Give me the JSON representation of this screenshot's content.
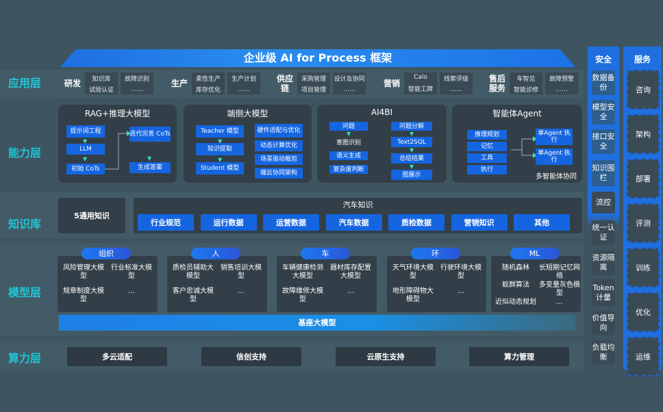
{
  "title": "企业级 AI for Process 框架",
  "layers": {
    "app": "应用层",
    "capability": "能力层",
    "knowledge": "知识库",
    "model": "模型层",
    "compute": "算力层"
  },
  "app_groups": [
    {
      "name": "研发",
      "cells": [
        [
          "知识库",
          "试验认证"
        ],
        [
          "故障识别",
          "……"
        ]
      ]
    },
    {
      "name": "生产",
      "cells": [
        [
          "柔性生产",
          "库存优化"
        ],
        [
          "生产计划",
          "……"
        ]
      ]
    },
    {
      "name": "供应链",
      "cells": [
        [
          "采购管理",
          "项目管理"
        ],
        [
          "设计及协同",
          "……"
        ]
      ]
    },
    {
      "name": "营销",
      "cells": [
        [
          "Calo",
          "智能工牌"
        ],
        [
          "线索评级",
          "……"
        ]
      ]
    },
    {
      "name": "售后服务",
      "cells": [
        [
          "车智见",
          "智能诊修"
        ],
        [
          "故障预警",
          "……"
        ]
      ]
    }
  ],
  "capability": {
    "rag": {
      "title": "RAG+推理大模型",
      "items": [
        "提示词工程",
        "LLM",
        "初始 CoTs",
        "迭代完善 CoTs",
        "生成答案"
      ]
    },
    "edge": {
      "title": "端侧大模型",
      "left": [
        "Teacher 模型",
        "知识提取",
        "Student 模型"
      ],
      "right": [
        "硬件适配与优化",
        "动态计算优化",
        "场景驱动裁剪",
        "端云协同架构"
      ]
    },
    "ai4bi": {
      "title": "AI4BI",
      "left": [
        "问题",
        "意图识别",
        "语义生成",
        "复杂度判断"
      ],
      "right": [
        "问题分解",
        "Text2SQL",
        "总结结果",
        "图展示"
      ]
    },
    "agent": {
      "title": "智能体Agent",
      "left": [
        "推理规划",
        "记忆",
        "工具",
        "执行"
      ],
      "right": [
        "单Agent 执行",
        "单Agent 执行"
      ],
      "footer": "多智能体协同"
    }
  },
  "knowledge": {
    "general": "5通用知识",
    "auto_title": "汽车知识",
    "auto_items": [
      "行业规范",
      "运行数据",
      "运营数据",
      "汽车数据",
      "质检数据",
      "营销知识",
      "其他"
    ]
  },
  "model": {
    "groups": [
      {
        "name": "组织",
        "items": [
          "风险管理大模型",
          "行业标准大模型",
          "规章制度大模型",
          "…"
        ]
      },
      {
        "name": "人",
        "items": [
          "质检员辅助大模型",
          "销售培训大模型",
          "客户忠诚大模型",
          "…"
        ]
      },
      {
        "name": "车",
        "items": [
          "车辆健康检测大模型",
          "器材库存配置大模型",
          "故障维修大模型",
          "…"
        ]
      },
      {
        "name": "环",
        "items": [
          "天气环境大模型",
          "行驶环境大模型",
          "地形障碍物大模型",
          "…"
        ]
      },
      {
        "name": "ML",
        "items": [
          "随机森林",
          "长短期记忆网络",
          "蚁群算法",
          "多变量灰色模型",
          "近似动态规划",
          "…"
        ]
      }
    ],
    "base": "基座大模型"
  },
  "compute": [
    "多云适配",
    "信创支持",
    "云原生支持",
    "算力管理"
  ],
  "security": {
    "title": "安全",
    "items": [
      "数据备份",
      "模型安全",
      "接口安全",
      "知识围栏",
      "流控",
      "统一认证",
      "资源隔离",
      "Token计量",
      "价值导向",
      "负载均衡"
    ]
  },
  "services": {
    "title": "服务",
    "items": [
      "咨询",
      "架构",
      "部署",
      "评测",
      "训练",
      "优化",
      "运维"
    ]
  }
}
